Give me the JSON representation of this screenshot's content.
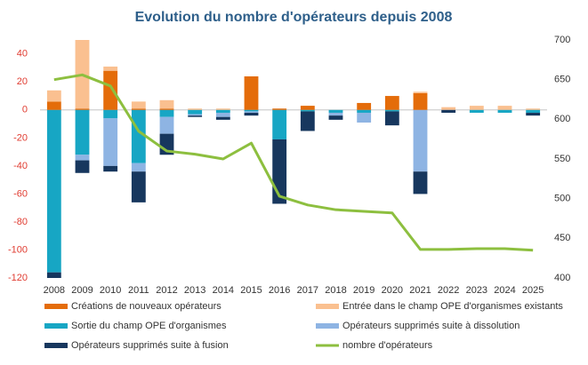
{
  "chart_data": {
    "type": "bar_line",
    "title": "Evolution du nombre d'opérateurs depuis 2008",
    "categories": [
      "2008",
      "2009",
      "2010",
      "2011",
      "2012",
      "2013",
      "2014",
      "2015",
      "2016",
      "2017",
      "2018",
      "2019",
      "2020",
      "2021",
      "2022",
      "2023",
      "2024",
      "2025"
    ],
    "series": [
      {
        "name": "Créations de nouveaux opérateurs",
        "color": "#e46c0a",
        "type": "bar",
        "values": [
          6,
          1,
          28,
          1,
          1,
          0,
          0,
          24,
          1,
          3,
          0,
          5,
          10,
          12,
          0,
          0,
          0,
          0
        ]
      },
      {
        "name": "Entrée dans le champ OPE d'organismes existants",
        "color": "#fac090",
        "type": "bar",
        "values": [
          8,
          49,
          3,
          5,
          6,
          1,
          1,
          0,
          0,
          0,
          0,
          0,
          0,
          1,
          2,
          3,
          3,
          1
        ]
      },
      {
        "name": "Sortie du champ OPE d'organismes",
        "color": "#17a6c4",
        "type": "bar",
        "values": [
          -116,
          -32,
          -6,
          -38,
          -5,
          -3,
          -2,
          -1,
          -21,
          -1,
          -2,
          -2,
          -1,
          0,
          0,
          -2,
          -2,
          -2
        ]
      },
      {
        "name": "Opérateurs supprimés suite à dissolution",
        "color": "#8eb4e3",
        "type": "bar",
        "values": [
          0,
          -4,
          -34,
          -6,
          -12,
          -1,
          -3,
          -1,
          0,
          0,
          -2,
          -7,
          0,
          -44,
          0,
          0,
          0,
          0
        ]
      },
      {
        "name": "Opérateurs supprimés suite à fusion",
        "color": "#17375e",
        "type": "bar",
        "values": [
          -4,
          -9,
          -4,
          -22,
          -15,
          -1,
          -2,
          -2,
          -46,
          -14,
          -3,
          0,
          -10,
          -16,
          -2,
          0,
          0,
          -2
        ]
      },
      {
        "name": "nombre d'opérateurs",
        "color": "#8dbf3f",
        "type": "line",
        "axis": "y2",
        "values": [
          650,
          656,
          642,
          585,
          560,
          556,
          550,
          570,
          503,
          492,
          486,
          484,
          482,
          436,
          436,
          437,
          437,
          435
        ]
      }
    ],
    "ylim": [
      -120,
      50
    ],
    "yticks": [
      -120,
      -100,
      -80,
      -60,
      -40,
      -20,
      0,
      20,
      40
    ],
    "y2lim": [
      400,
      700
    ],
    "y2ticks": [
      400,
      450,
      500,
      550,
      600,
      650,
      700
    ],
    "grid": false
  }
}
